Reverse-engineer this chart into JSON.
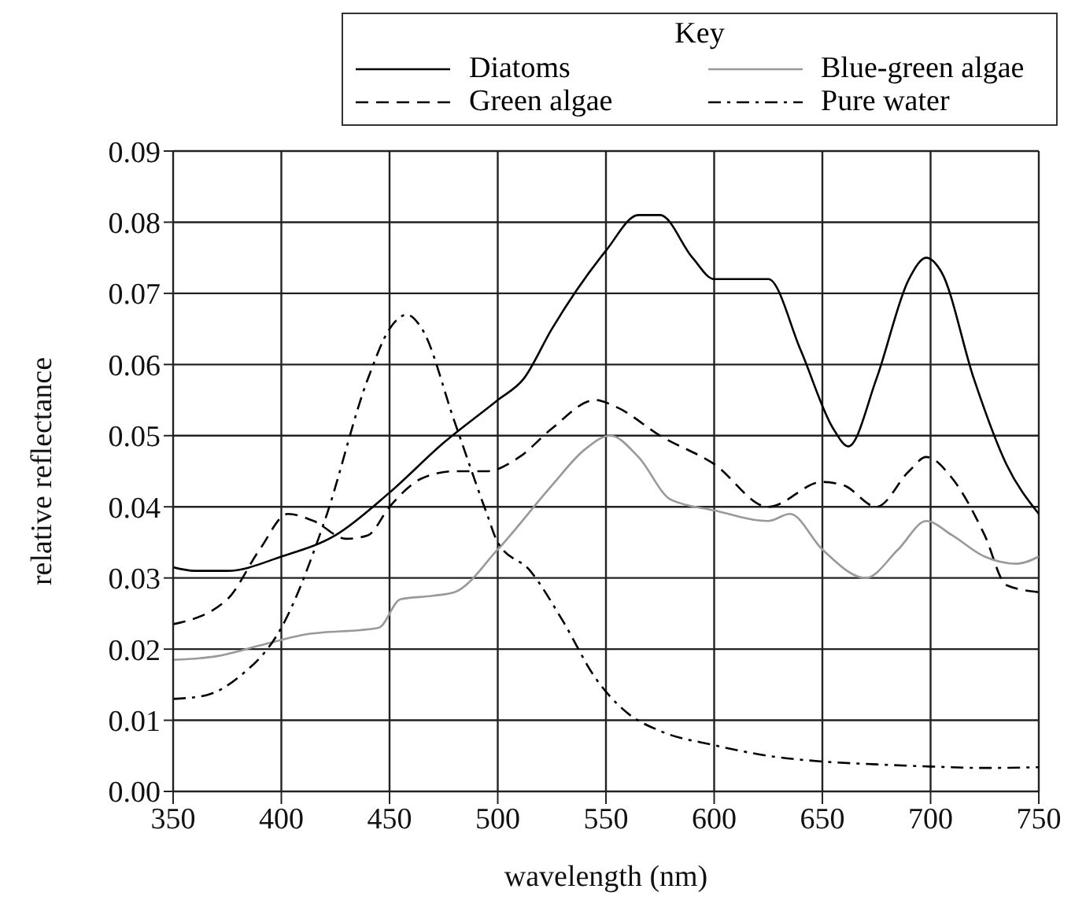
{
  "chart_data": {
    "type": "line",
    "xlabel": "wavelength (nm)",
    "ylabel": "relative reflectance",
    "legend_title": "Key",
    "legend": "top right",
    "grid": true,
    "xlim": [
      350,
      750
    ],
    "xticks": [
      350,
      400,
      450,
      500,
      550,
      600,
      650,
      700,
      750
    ],
    "ylim": [
      0,
      0.09
    ],
    "yticks": [
      {
        "value": 0,
        "label": "0.00"
      },
      {
        "value": 0.01,
        "label": "0.01"
      },
      {
        "value": 0.02,
        "label": "0.02"
      },
      {
        "value": 0.03,
        "label": "0.03"
      },
      {
        "value": 0.04,
        "label": "0.04"
      },
      {
        "value": 0.05,
        "label": "0.05"
      },
      {
        "value": 0.06,
        "label": "0.06"
      },
      {
        "value": 0.07,
        "label": "0.07"
      },
      {
        "value": 0.08,
        "label": "0.08"
      },
      {
        "value": 0.09,
        "label": "0.09"
      }
    ],
    "series": [
      {
        "name": "Diatoms",
        "color": "#000000",
        "line_style": "solid",
        "x": [
          350,
          360,
          375,
          400,
          425,
          450,
          475,
          500,
          512,
          525,
          550,
          565,
          575,
          590,
          600,
          625,
          640,
          655,
          662,
          675,
          690,
          698,
          705,
          720,
          735,
          750
        ],
        "values": [
          0.0315,
          0.031,
          0.031,
          0.033,
          0.036,
          0.042,
          0.049,
          0.055,
          0.058,
          0.065,
          0.076,
          0.081,
          0.081,
          0.075,
          0.072,
          0.072,
          0.062,
          0.051,
          0.0485,
          0.058,
          0.072,
          0.075,
          0.073,
          0.058,
          0.046,
          0.039
        ]
      },
      {
        "name": "Green algae",
        "color": "#000000",
        "line_style": "dashed",
        "x": [
          350,
          375,
          390,
          403,
          415,
          430,
          440,
          450,
          465,
          480,
          495,
          510,
          525,
          545,
          555,
          575,
          600,
          625,
          650,
          660,
          675,
          690,
          698,
          710,
          725,
          735,
          750
        ],
        "values": [
          0.0235,
          0.027,
          0.034,
          0.039,
          0.038,
          0.0355,
          0.036,
          0.04,
          0.044,
          0.045,
          0.045,
          0.047,
          0.051,
          0.055,
          0.054,
          0.05,
          0.046,
          0.04,
          0.0435,
          0.043,
          0.04,
          0.045,
          0.047,
          0.044,
          0.036,
          0.029,
          0.028
        ]
      },
      {
        "name": "Blue-green algae",
        "color": "#999999",
        "line_style": "solid",
        "x": [
          350,
          370,
          390,
          410,
          445,
          455,
          470,
          480,
          500,
          525,
          540,
          552,
          565,
          580,
          600,
          625,
          635,
          650,
          670,
          685,
          698,
          710,
          725,
          740,
          750
        ],
        "values": [
          0.0185,
          0.019,
          0.0205,
          0.022,
          0.023,
          0.027,
          0.0275,
          0.028,
          0.034,
          0.043,
          0.048,
          0.05,
          0.047,
          0.041,
          0.0395,
          0.038,
          0.039,
          0.034,
          0.03,
          0.034,
          0.038,
          0.036,
          0.033,
          0.032,
          0.033
        ]
      },
      {
        "name": "Pure water",
        "color": "#000000",
        "line_style": "dashdot",
        "x": [
          350,
          365,
          380,
          400,
          420,
          440,
          450,
          458,
          465,
          480,
          495,
          500,
          515,
          530,
          545,
          560,
          575,
          600,
          625,
          650,
          675,
          700,
          725,
          750
        ],
        "values": [
          0.013,
          0.0135,
          0.016,
          0.023,
          0.038,
          0.058,
          0.065,
          0.067,
          0.065,
          0.052,
          0.039,
          0.035,
          0.031,
          0.024,
          0.016,
          0.011,
          0.0085,
          0.0065,
          0.005,
          0.0042,
          0.0038,
          0.0035,
          0.0033,
          0.0034
        ]
      }
    ]
  }
}
